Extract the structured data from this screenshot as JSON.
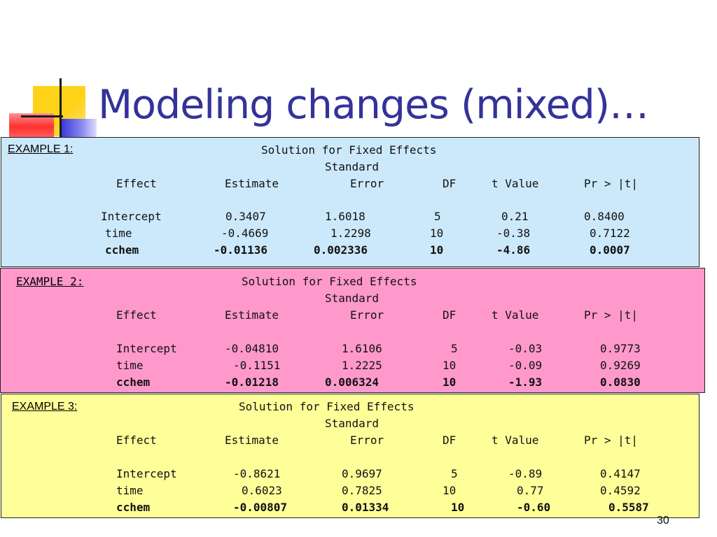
{
  "title": "Modeling changes (mixed)…",
  "page_number": "30",
  "examples": [
    {
      "label": "EXAMPLE 1:",
      "heading": "Solution for Fixed Effects",
      "subheading": "Standard",
      "columns": [
        "Effect",
        "Estimate",
        "Error",
        "DF",
        "t Value",
        "Pr > |t|"
      ],
      "rows": [
        {
          "effect": "Intercept",
          "estimate": "0.3407",
          "error": "1.6018",
          "df": "5",
          "t": "0.21",
          "p": "0.8400"
        },
        {
          "effect": "time",
          "estimate": "-0.4669",
          "error": "1.2298",
          "df": "10",
          "t": "-0.38",
          "p": "0.7122"
        },
        {
          "effect": "cchem",
          "estimate": "-0.01136",
          "error": "0.002336",
          "df": "10",
          "t": "-4.86",
          "p": "0.0007"
        }
      ]
    },
    {
      "label": "EXAMPLE 2:",
      "heading": "Solution for Fixed Effects",
      "subheading": "Standard",
      "columns": [
        "Effect",
        "Estimate",
        "Error",
        "DF",
        "t Value",
        "Pr > |t|"
      ],
      "rows": [
        {
          "effect": "Intercept",
          "estimate": "-0.04810",
          "error": "1.6106",
          "df": "5",
          "t": "-0.03",
          "p": "0.9773"
        },
        {
          "effect": "time",
          "estimate": "-0.1151",
          "error": "1.2225",
          "df": "10",
          "t": "-0.09",
          "p": "0.9269"
        },
        {
          "effect": "cchem",
          "estimate": "-0.01218",
          "error": "0.006324",
          "df": "10",
          "t": "-1.93",
          "p": "0.0830"
        }
      ]
    },
    {
      "label": "EXAMPLE 3:",
      "heading": "Solution for Fixed Effects",
      "subheading": "Standard",
      "columns": [
        "Effect",
        "Estimate",
        "Error",
        "DF",
        "t Value",
        "Pr > |t|"
      ],
      "rows": [
        {
          "effect": "Intercept",
          "estimate": "-0.8621",
          "error": "0.9697",
          "df": "5",
          "t": "-0.89",
          "p": "0.4147"
        },
        {
          "effect": "time",
          "estimate": "0.6023",
          "error": "0.7825",
          "df": "10",
          "t": "0.77",
          "p": "0.4592"
        },
        {
          "effect": "cchem",
          "estimate": "-0.00807",
          "error": "0.01334",
          "df": "10",
          "t": "-0.60",
          "p": "0.5587"
        }
      ]
    }
  ],
  "colors": {
    "title": "#333399",
    "example1_bg": "#cce9fb",
    "example2_bg": "#ff99cc",
    "example3_bg": "#ffff99"
  }
}
